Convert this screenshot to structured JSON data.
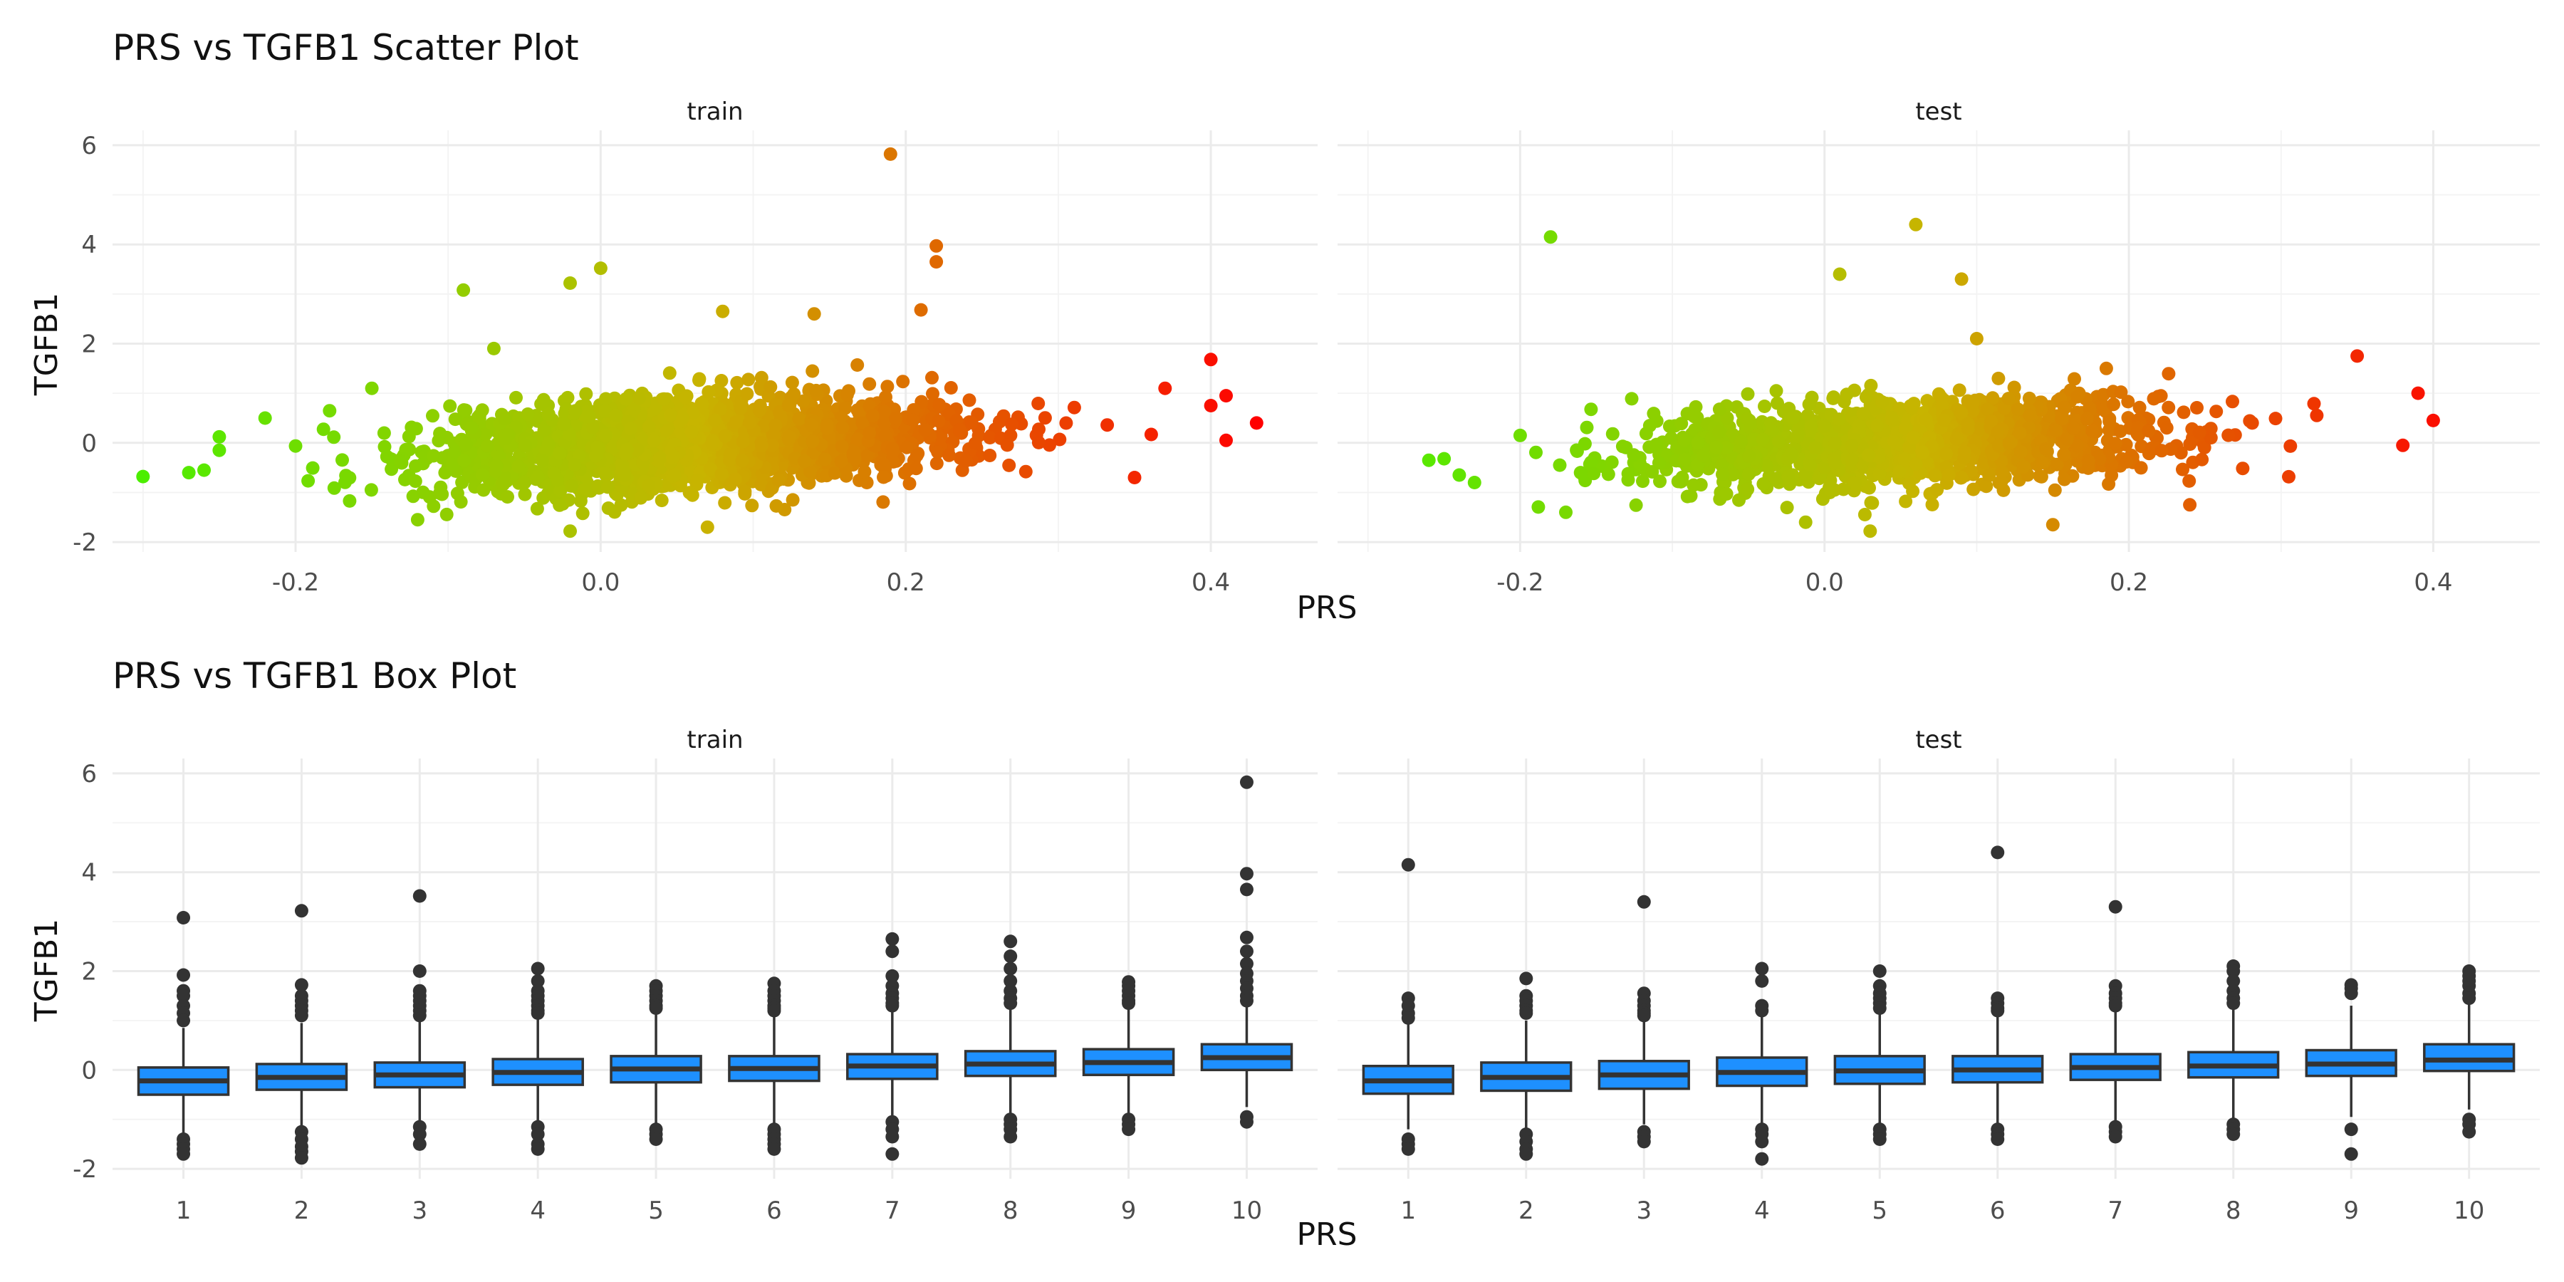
{
  "colors": {
    "low": "#4cee00",
    "mid": "#c8b400",
    "high": "#ff0000",
    "box_fill": "#1e90ff",
    "box_line": "#333333",
    "grid": "#ebebeb"
  },
  "panels": [
    "train",
    "test"
  ],
  "xlabel": "PRS",
  "ylabel": "TGFB1",
  "chart_data": [
    {
      "type": "scatter",
      "title": "PRS vs TGFB1 Scatter Plot",
      "xlabel": "PRS",
      "ylabel": "TGFB1",
      "xlim": [
        -0.32,
        0.47
      ],
      "ylim": [
        -2.2,
        6.3
      ],
      "x_ticks": [
        -0.2,
        0.0,
        0.2,
        0.4
      ],
      "y_ticks": [
        -2,
        0,
        2,
        4,
        6
      ],
      "grid": true,
      "legend": "none",
      "color_scale": "gradient green-yellow-red by PRS",
      "facets": [
        {
          "name": "train",
          "bulk": {
            "x_range": [
              -0.2,
              0.38
            ],
            "slope": 1.4,
            "center_x": 0.06,
            "spread_y": 0.45,
            "count": 2200
          },
          "points": [
            {
              "x": -0.3,
              "y": -0.68
            },
            {
              "x": -0.27,
              "y": -0.6
            },
            {
              "x": -0.26,
              "y": -0.55
            },
            {
              "x": -0.25,
              "y": 0.12
            },
            {
              "x": -0.25,
              "y": -0.15
            },
            {
              "x": -0.22,
              "y": 0.5
            },
            {
              "x": -0.09,
              "y": 3.08
            },
            {
              "x": -0.02,
              "y": 3.22
            },
            {
              "x": 0.0,
              "y": 3.52
            },
            {
              "x": 0.19,
              "y": 5.82
            },
            {
              "x": 0.22,
              "y": 3.97
            },
            {
              "x": 0.22,
              "y": 3.65
            },
            {
              "x": 0.21,
              "y": 2.68
            },
            {
              "x": 0.14,
              "y": 2.6
            },
            {
              "x": 0.08,
              "y": 2.65
            },
            {
              "x": -0.07,
              "y": 1.9
            },
            {
              "x": -0.15,
              "y": 1.1
            },
            {
              "x": -0.12,
              "y": -1.55
            },
            {
              "x": -0.02,
              "y": -1.78
            },
            {
              "x": 0.07,
              "y": -1.7
            },
            {
              "x": 0.4,
              "y": 1.68
            },
            {
              "x": 0.41,
              "y": 0.95
            },
            {
              "x": 0.43,
              "y": 0.4
            },
            {
              "x": 0.41,
              "y": 0.05
            },
            {
              "x": 0.4,
              "y": 0.75
            },
            {
              "x": 0.35,
              "y": -0.7
            },
            {
              "x": 0.37,
              "y": 1.1
            }
          ]
        },
        {
          "name": "test",
          "bulk": {
            "x_range": [
              -0.2,
              0.36
            ],
            "slope": 1.4,
            "center_x": 0.05,
            "spread_y": 0.45,
            "count": 1500
          },
          "points": [
            {
              "x": -0.26,
              "y": -0.35
            },
            {
              "x": -0.25,
              "y": -0.32
            },
            {
              "x": -0.24,
              "y": -0.65
            },
            {
              "x": -0.23,
              "y": -0.8
            },
            {
              "x": -0.18,
              "y": 4.15
            },
            {
              "x": 0.01,
              "y": 3.4
            },
            {
              "x": 0.06,
              "y": 4.4
            },
            {
              "x": 0.09,
              "y": 3.3
            },
            {
              "x": -0.17,
              "y": -1.4
            },
            {
              "x": 0.03,
              "y": -1.78
            },
            {
              "x": 0.15,
              "y": -1.65
            },
            {
              "x": 0.1,
              "y": 2.1
            },
            {
              "x": 0.35,
              "y": 1.75
            },
            {
              "x": 0.39,
              "y": 1.0
            },
            {
              "x": 0.4,
              "y": 0.45
            },
            {
              "x": 0.38,
              "y": -0.05
            },
            {
              "x": 0.24,
              "y": -1.25
            }
          ]
        }
      ]
    },
    {
      "type": "box",
      "title": "PRS vs TGFB1 Box Plot",
      "xlabel": "PRS",
      "ylabel": "TGFB1",
      "categories": [
        "1",
        "2",
        "3",
        "4",
        "5",
        "6",
        "7",
        "8",
        "9",
        "10"
      ],
      "ylim": [
        -2.2,
        6.3
      ],
      "y_ticks": [
        -2,
        0,
        2,
        4,
        6
      ],
      "grid": true,
      "facets": [
        {
          "name": "train",
          "boxes": [
            {
              "cat": "1",
              "q1": -0.5,
              "median": -0.22,
              "q3": 0.05,
              "lo": -1.3,
              "hi": 0.85,
              "outliers": [
                3.08,
                1.92,
                1.6,
                1.5,
                1.3,
                1.15,
                1.0,
                -1.4,
                -1.5,
                -1.6,
                -1.7
              ]
            },
            {
              "cat": "2",
              "q1": -0.4,
              "median": -0.15,
              "q3": 0.12,
              "lo": -1.15,
              "hi": 0.95,
              "outliers": [
                3.22,
                1.72,
                1.5,
                1.4,
                1.3,
                1.2,
                1.1,
                -1.25,
                -1.4,
                -1.55,
                -1.65,
                -1.78
              ]
            },
            {
              "cat": "3",
              "q1": -0.35,
              "median": -0.1,
              "q3": 0.15,
              "lo": -1.05,
              "hi": 1.0,
              "outliers": [
                3.52,
                2.0,
                1.6,
                1.5,
                1.4,
                1.3,
                1.2,
                1.1,
                -1.15,
                -1.3,
                -1.5
              ]
            },
            {
              "cat": "4",
              "q1": -0.3,
              "median": -0.05,
              "q3": 0.22,
              "lo": -1.05,
              "hi": 1.05,
              "outliers": [
                2.05,
                1.8,
                1.6,
                1.5,
                1.4,
                1.3,
                1.2,
                1.15,
                -1.15,
                -1.3,
                -1.5,
                -1.6
              ]
            },
            {
              "cat": "5",
              "q1": -0.25,
              "median": 0.02,
              "q3": 0.28,
              "lo": -1.1,
              "hi": 1.15,
              "outliers": [
                1.7,
                1.6,
                1.5,
                1.4,
                1.3,
                1.25,
                -1.2,
                -1.3,
                -1.4
              ]
            },
            {
              "cat": "6",
              "q1": -0.22,
              "median": 0.03,
              "q3": 0.28,
              "lo": -1.1,
              "hi": 1.1,
              "outliers": [
                1.75,
                1.6,
                1.5,
                1.4,
                1.3,
                1.25,
                1.2,
                -1.2,
                -1.3,
                -1.4,
                -1.5,
                -1.6
              ]
            },
            {
              "cat": "7",
              "q1": -0.18,
              "median": 0.08,
              "q3": 0.32,
              "lo": -1.0,
              "hi": 1.2,
              "outliers": [
                2.65,
                2.4,
                1.9,
                1.7,
                1.55,
                1.45,
                1.35,
                1.3,
                -1.05,
                -1.2,
                -1.35,
                -1.7
              ]
            },
            {
              "cat": "8",
              "q1": -0.12,
              "median": 0.12,
              "q3": 0.38,
              "lo": -0.95,
              "hi": 1.25,
              "outliers": [
                2.6,
                2.3,
                2.05,
                1.8,
                1.6,
                1.45,
                1.35,
                -1.0,
                -1.1,
                -1.2,
                -1.35
              ]
            },
            {
              "cat": "9",
              "q1": -0.1,
              "median": 0.15,
              "q3": 0.42,
              "lo": -0.9,
              "hi": 1.3,
              "outliers": [
                1.78,
                1.7,
                1.6,
                1.5,
                1.4,
                1.35,
                -1.0,
                -1.1,
                -1.2
              ]
            },
            {
              "cat": "10",
              "q1": 0.0,
              "median": 0.25,
              "q3": 0.52,
              "lo": -0.75,
              "hi": 1.3,
              "outliers": [
                5.82,
                3.97,
                3.65,
                2.68,
                2.4,
                2.15,
                1.95,
                1.8,
                1.65,
                1.5,
                1.4,
                -0.95,
                -1.05
              ]
            }
          ]
        },
        {
          "name": "test",
          "boxes": [
            {
              "cat": "1",
              "q1": -0.48,
              "median": -0.22,
              "q3": 0.08,
              "lo": -1.2,
              "hi": 0.95,
              "outliers": [
                4.15,
                1.45,
                1.3,
                1.15,
                1.05,
                -1.4,
                -1.5,
                -1.6
              ]
            },
            {
              "cat": "2",
              "q1": -0.42,
              "median": -0.15,
              "q3": 0.15,
              "lo": -1.2,
              "hi": 1.0,
              "outliers": [
                1.85,
                1.5,
                1.4,
                1.3,
                1.2,
                1.15,
                -1.3,
                -1.45,
                -1.6,
                -1.7
              ]
            },
            {
              "cat": "3",
              "q1": -0.38,
              "median": -0.1,
              "q3": 0.18,
              "lo": -1.1,
              "hi": 1.0,
              "outliers": [
                3.4,
                1.55,
                1.4,
                1.3,
                1.2,
                1.15,
                1.1,
                -1.25,
                -1.35,
                -1.45
              ]
            },
            {
              "cat": "4",
              "q1": -0.32,
              "median": -0.05,
              "q3": 0.25,
              "lo": -1.1,
              "hi": 1.1,
              "outliers": [
                2.05,
                1.8,
                1.3,
                1.2,
                -1.2,
                -1.3,
                -1.45,
                -1.8
              ]
            },
            {
              "cat": "5",
              "q1": -0.28,
              "median": -0.02,
              "q3": 0.28,
              "lo": -1.1,
              "hi": 1.15,
              "outliers": [
                2.0,
                1.7,
                1.55,
                1.45,
                1.35,
                1.25,
                -1.2,
                -1.3,
                -1.4
              ]
            },
            {
              "cat": "6",
              "q1": -0.25,
              "median": 0.0,
              "q3": 0.28,
              "lo": -1.1,
              "hi": 1.1,
              "outliers": [
                4.4,
                1.45,
                1.35,
                1.25,
                1.2,
                -1.2,
                -1.3,
                -1.4
              ]
            },
            {
              "cat": "7",
              "q1": -0.2,
              "median": 0.05,
              "q3": 0.32,
              "lo": -1.05,
              "hi": 1.2,
              "outliers": [
                3.3,
                1.7,
                1.55,
                1.45,
                1.35,
                1.3,
                -1.15,
                -1.25,
                -1.35
              ]
            },
            {
              "cat": "8",
              "q1": -0.15,
              "median": 0.08,
              "q3": 0.36,
              "lo": -1.0,
              "hi": 1.25,
              "outliers": [
                2.1,
                2.0,
                1.8,
                1.6,
                1.45,
                1.35,
                -1.1,
                -1.2,
                -1.3
              ]
            },
            {
              "cat": "9",
              "q1": -0.12,
              "median": 0.12,
              "q3": 0.4,
              "lo": -0.95,
              "hi": 1.3,
              "outliers": [
                1.72,
                1.65,
                1.55,
                -1.2,
                -1.7
              ]
            },
            {
              "cat": "10",
              "q1": -0.02,
              "median": 0.2,
              "q3": 0.52,
              "lo": -0.8,
              "hi": 1.35,
              "outliers": [
                2.0,
                1.9,
                1.8,
                1.7,
                1.55,
                1.45,
                -1.0,
                -1.1,
                -1.25
              ]
            }
          ]
        }
      ]
    }
  ]
}
